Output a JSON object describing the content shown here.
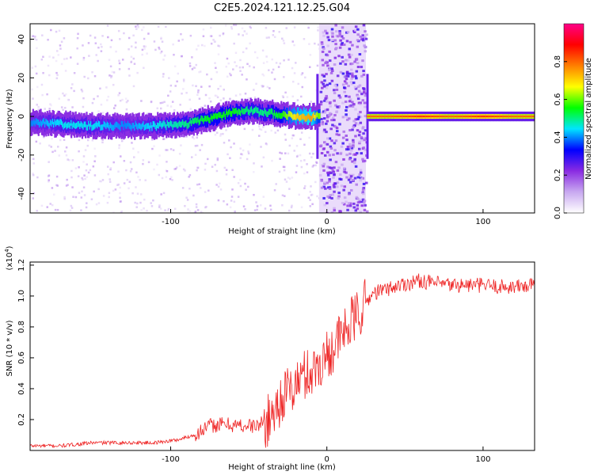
{
  "title": "C2E5.2024.121.12.25.G04",
  "chart_data": [
    {
      "type": "heatmap",
      "xlabel": "Height of straight line (km)",
      "ylabel": "Frequency (Hz)",
      "xlim": [
        -190,
        133
      ],
      "ylim": [
        -50,
        48
      ],
      "xticks": [
        -100,
        0,
        100
      ],
      "yticks": [
        -40,
        -20,
        0,
        20,
        40
      ],
      "colorbar": {
        "label": "Normalized spectral amplitude",
        "range": [
          0,
          1
        ],
        "ticks": [
          0.0,
          0.2,
          0.4,
          0.6,
          0.8
        ],
        "tick_labels": [
          "0.0",
          "0.2",
          "0.4",
          "0.6",
          "0.8"
        ],
        "colors": [
          "#ffffff",
          "#c8a8f0",
          "#8a2be2",
          "#0000ff",
          "#00e5ff",
          "#00ff00",
          "#ffff00",
          "#ff7f00",
          "#ff0000",
          "#ff0088"
        ]
      },
      "ridge": {
        "x": [
          -190,
          -170,
          -150,
          -130,
          -110,
          -90,
          -75,
          -60,
          -50,
          -40,
          -30,
          -20,
          -10,
          -6,
          25,
          40,
          60,
          80,
          100,
          120,
          133
        ],
        "y": [
          -3,
          -4,
          -5,
          -5,
          -5,
          -4,
          -1,
          2,
          3,
          2,
          1,
          0,
          0,
          0,
          0,
          0,
          0,
          0,
          0,
          0,
          0
        ],
        "peak_amplitude": [
          0.4,
          0.45,
          0.45,
          0.4,
          0.45,
          0.5,
          0.55,
          0.55,
          0.5,
          0.5,
          0.55,
          0.7,
          0.75,
          0.6,
          0.8,
          0.8,
          0.85,
          0.8,
          0.85,
          0.8,
          0.8
        ]
      },
      "broadband_band_x": [
        -5,
        25
      ]
    },
    {
      "type": "line",
      "xlabel": "Height of straight line (km)",
      "ylabel": "SNR (10 * v/v)",
      "yscale_label": "(x10",
      "yscale_exp": "4",
      "yscale_close": ")",
      "xlim": [
        -190,
        133
      ],
      "ylim": [
        0,
        1.22
      ],
      "xticks": [
        -100,
        0,
        100
      ],
      "yticks": [
        0.2,
        0.4,
        0.6,
        0.8,
        1.0,
        1.2
      ],
      "ytick_labels": [
        "0.2",
        "0.4",
        "0.6",
        "0.8",
        "1.0",
        "1.2"
      ],
      "color": "#ee2222",
      "series": [
        {
          "x": [
            -190,
            -170,
            -150,
            -130,
            -110,
            -95,
            -85,
            -75,
            -65,
            -55,
            -45,
            -38,
            -32,
            -28,
            -24,
            -20,
            -16,
            -12,
            -8,
            -4,
            0,
            5,
            10,
            15,
            20,
            25,
            30,
            40,
            50,
            60,
            70,
            80,
            90,
            100,
            110,
            120,
            133
          ],
          "y": [
            0.03,
            0.03,
            0.05,
            0.05,
            0.05,
            0.07,
            0.1,
            0.16,
            0.17,
            0.16,
            0.16,
            0.19,
            0.28,
            0.36,
            0.38,
            0.42,
            0.48,
            0.5,
            0.52,
            0.57,
            0.62,
            0.68,
            0.75,
            0.82,
            0.88,
            0.96,
            1.02,
            1.05,
            1.08,
            1.1,
            1.08,
            1.07,
            1.07,
            1.07,
            1.06,
            1.06,
            1.07
          ]
        }
      ]
    }
  ]
}
